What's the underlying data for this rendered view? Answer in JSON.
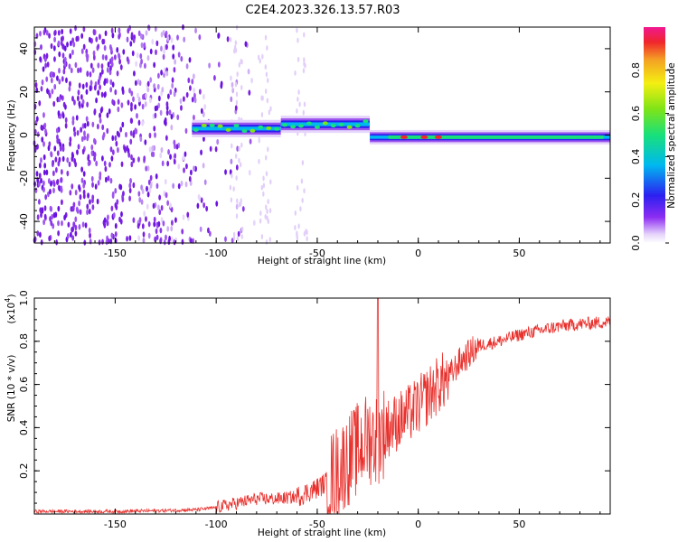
{
  "title": "C2E4.2023.326.13.57.R03",
  "colors": {
    "snr_line": "#e8302c",
    "scatter": "#7a1fe0",
    "axis": "#000000"
  },
  "chart_data": [
    {
      "type": "heatmap",
      "xlabel": "Height of straight line (km)",
      "ylabel": "Frequency (Hz)",
      "xlim": [
        -190,
        95
      ],
      "ylim": [
        -50,
        50
      ],
      "xticks": [
        -150,
        -100,
        -50,
        0,
        50
      ],
      "yticks": [
        -40,
        -20,
        0,
        20,
        40
      ],
      "xtick_labels": [
        "-150",
        "-100",
        "-50",
        "0",
        "50"
      ],
      "ytick_labels": [
        "-40",
        "-20",
        "0",
        "20",
        "40"
      ],
      "colorbar": {
        "label": "Normalized spectral amplitude",
        "range": [
          0,
          1
        ],
        "ticks": [
          0.0,
          0.2,
          0.4,
          0.6,
          0.8
        ],
        "tick_labels": [
          "0.0",
          "0.2",
          "0.4",
          "0.6",
          "0.8"
        ],
        "colormap": "rainbow (white-violet-blue-cyan-green-yellow-red-magenta)"
      },
      "features": {
        "noise_region_x": [
          -190,
          -110
        ],
        "band_segment_1": {
          "x": [
            -112,
            -68
          ],
          "freq_hz": 3
        },
        "band_segment_2": {
          "x": [
            -68,
            -24
          ],
          "freq_hz": 5
        },
        "band_segment_3": {
          "x": [
            -24,
            95
          ],
          "freq_hz": -1
        },
        "peak_x": [
          -7,
          3,
          10
        ]
      }
    },
    {
      "type": "line",
      "xlabel": "Height of straight line (km)",
      "ylabel": "SNR (10 * v/v)",
      "multiplier": "(x10",
      "multiplier_exp": "4",
      "xlim": [
        -190,
        95
      ],
      "ylim": [
        0,
        1
      ],
      "xticks": [
        -150,
        -100,
        -50,
        0,
        50
      ],
      "yticks": [
        0.2,
        0.4,
        0.6,
        0.8,
        1.0
      ],
      "xtick_labels": [
        "-150",
        "-100",
        "-50",
        "0",
        "50"
      ],
      "ytick_labels": [
        "0.2",
        "0.4",
        "0.6",
        "0.8",
        "1.0"
      ],
      "series": [
        {
          "x": [
            -190,
            -170,
            -150,
            -130,
            -110,
            -100,
            -90,
            -80,
            -70,
            -60,
            -50,
            -45,
            -40,
            -35,
            -30,
            -25,
            -20,
            -15,
            -10,
            -5,
            0,
            5,
            10,
            15,
            20,
            25,
            30,
            40,
            50,
            60,
            70,
            80,
            95
          ],
          "values": [
            0.012,
            0.012,
            0.012,
            0.015,
            0.02,
            0.03,
            0.05,
            0.07,
            0.07,
            0.08,
            0.12,
            0.15,
            0.2,
            0.25,
            0.3,
            0.35,
            0.35,
            0.4,
            0.43,
            0.46,
            0.5,
            0.55,
            0.6,
            0.63,
            0.7,
            0.74,
            0.78,
            0.8,
            0.83,
            0.85,
            0.87,
            0.88,
            0.89
          ]
        }
      ],
      "spike": {
        "x": -20,
        "value": 1.0
      }
    }
  ]
}
